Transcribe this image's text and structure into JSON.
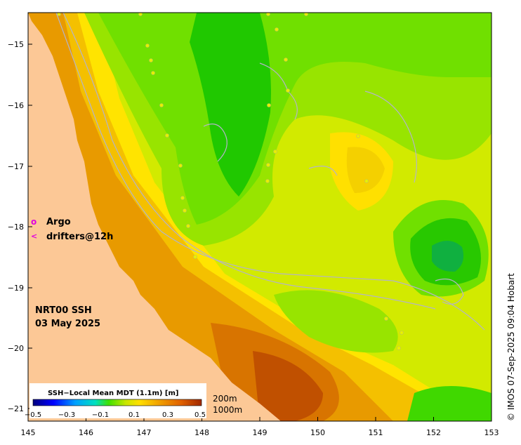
{
  "map": {
    "title_line1": "NRT00 SSH",
    "title_line2": "03 May 2025",
    "credit": "© IMOS 07-Sep-2025 09:04 Hobart",
    "x_ticks": [
      "145",
      "146",
      "147",
      "148",
      "149",
      "150",
      "151",
      "152",
      "153"
    ],
    "y_ticks": [
      "−15",
      "−16",
      "−17",
      "−18",
      "−19",
      "−20",
      "−21"
    ],
    "legend": {
      "argo_symbol": "o",
      "argo_label": "Argo",
      "drifter_symbol": "<",
      "drifter_label": "drifters@12h"
    },
    "colorbar": {
      "title": "SSH−Local Mean MDT (1.1m) [m]",
      "tick_labels": [
        "−0.5",
        "−0.3",
        "−0.1",
        "0.1",
        "0.3",
        "0.5"
      ]
    },
    "depth_labels": [
      "200m",
      "1000m"
    ],
    "colors": {
      "land": "#fcc896",
      "argo": "#e000e0",
      "bathy": "#b4b4c8"
    }
  }
}
